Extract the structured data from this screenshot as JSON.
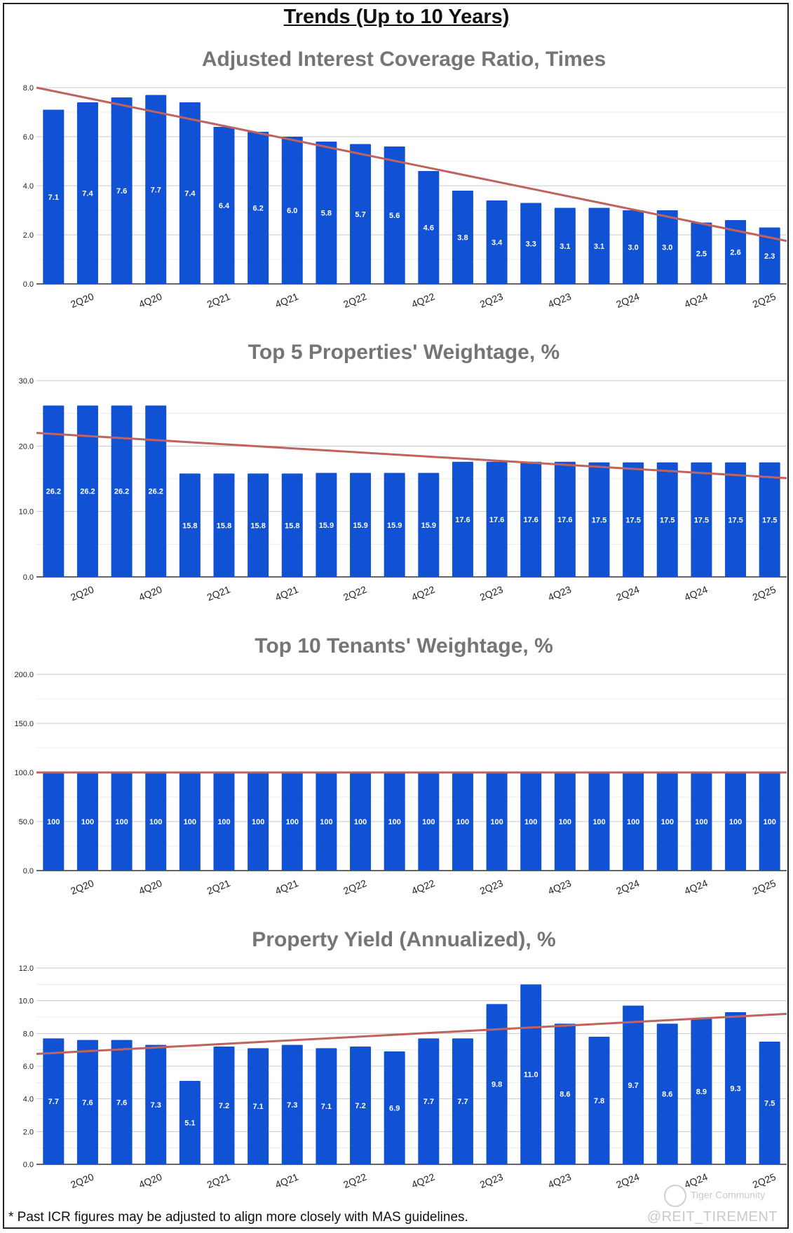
{
  "page": {
    "title": "Trends (Up to 10 Years)",
    "footnote": "* Past ICR figures may be adjusted to align more closely with MAS guidelines.",
    "watermark": "@REIT_TIREMENT",
    "logo_text": "Tiger Community"
  },
  "colors": {
    "bar": "#1152d4",
    "trend": "#c0625e",
    "title": "#757575",
    "grid": "#d9d9d9"
  },
  "x_tick_labels": [
    "2Q20",
    "4Q20",
    "2Q21",
    "4Q21",
    "2Q22",
    "4Q22",
    "2Q23",
    "4Q23",
    "2Q24",
    "4Q24",
    "2Q25"
  ],
  "chart_data": [
    {
      "type": "bar",
      "title": "Adjusted Interest Coverage Ratio, Times",
      "values": [
        7.1,
        7.4,
        7.6,
        7.7,
        7.4,
        6.4,
        6.2,
        6.0,
        5.8,
        5.7,
        5.6,
        4.6,
        3.8,
        3.4,
        3.3,
        3.1,
        3.1,
        3.0,
        3.0,
        2.5,
        2.6,
        2.3
      ],
      "data_labels": [
        "7.1",
        "7.4",
        "7.6",
        "7.7",
        "7.4",
        "6.4",
        "6.2",
        "6.0",
        "5.8",
        "5.7",
        "5.6",
        "4.6",
        "3.8",
        "3.4",
        "3.3",
        "3.1",
        "3.1",
        "3.0",
        "3.0",
        "2.5",
        "2.6",
        "2.3"
      ],
      "ylim": [
        0,
        8
      ],
      "y_ticks": [
        "0.0",
        "2.0",
        "4.0",
        "6.0",
        "8.0"
      ],
      "trendline": {
        "start": 8.0,
        "end": 1.75
      },
      "grid": true
    },
    {
      "type": "bar",
      "title": "Top 5 Properties' Weightage, %",
      "values": [
        26.2,
        26.2,
        26.2,
        26.2,
        15.8,
        15.8,
        15.8,
        15.8,
        15.9,
        15.9,
        15.9,
        15.9,
        17.6,
        17.6,
        17.6,
        17.6,
        17.5,
        17.5,
        17.5,
        17.5,
        17.5,
        17.5
      ],
      "data_labels": [
        "26.2",
        "26.2",
        "26.2",
        "26.2",
        "15.8",
        "15.8",
        "15.8",
        "15.8",
        "15.9",
        "15.9",
        "15.9",
        "15.9",
        "17.6",
        "17.6",
        "17.6",
        "17.6",
        "17.5",
        "17.5",
        "17.5",
        "17.5",
        "17.5",
        "17.5"
      ],
      "ylim": [
        0,
        30
      ],
      "y_ticks": [
        "0.0",
        "10.0",
        "20.0",
        "30.0"
      ],
      "trendline": {
        "start": 22.0,
        "end": 15.1
      },
      "grid": true
    },
    {
      "type": "bar",
      "title": "Top 10 Tenants' Weightage, %",
      "values": [
        100,
        100,
        100,
        100,
        100,
        100,
        100,
        100,
        100,
        100,
        100,
        100,
        100,
        100,
        100,
        100,
        100,
        100,
        100,
        100,
        100,
        100
      ],
      "data_labels": [
        "100",
        "100",
        "100",
        "100",
        "100",
        "100",
        "100",
        "100",
        "100",
        "100",
        "100",
        "100",
        "100",
        "100",
        "100",
        "100",
        "100",
        "100",
        "100",
        "100",
        "100",
        "100"
      ],
      "ylim": [
        0,
        200
      ],
      "y_ticks": [
        "0.0",
        "50.0",
        "100.0",
        "150.0",
        "200.0"
      ],
      "trendline": {
        "start": 100,
        "end": 100
      },
      "grid": true
    },
    {
      "type": "bar",
      "title": "Property Yield (Annualized), %",
      "values": [
        7.7,
        7.6,
        7.6,
        7.3,
        5.1,
        7.2,
        7.1,
        7.3,
        7.1,
        7.2,
        6.9,
        7.7,
        7.7,
        9.8,
        11.0,
        8.6,
        7.8,
        9.7,
        8.6,
        8.9,
        9.3,
        7.5
      ],
      "data_labels": [
        "7.7",
        "7.6",
        "7.6",
        "7.3",
        "5.1",
        "7.2",
        "7.1",
        "7.3",
        "7.1",
        "7.2",
        "6.9",
        "7.7",
        "7.7",
        "9.8",
        "11.0",
        "8.6",
        "7.8",
        "9.7",
        "8.6",
        "8.9",
        "9.3",
        "7.5"
      ],
      "ylim": [
        0,
        12
      ],
      "y_ticks": [
        "0.0",
        "2.0",
        "4.0",
        "6.0",
        "8.0",
        "10.0",
        "12.0"
      ],
      "trendline": {
        "start": 6.75,
        "end": 9.2
      },
      "grid": true
    }
  ]
}
